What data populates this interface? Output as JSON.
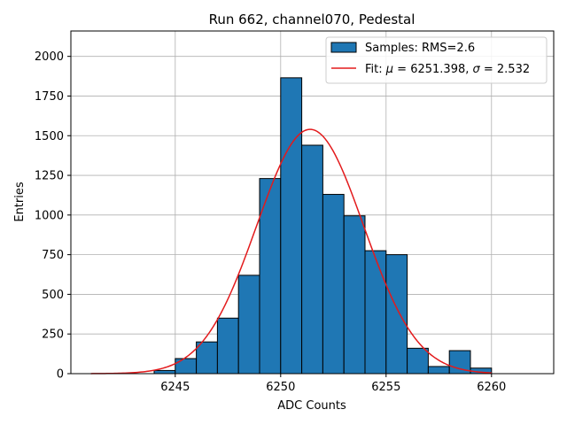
{
  "chart_data": {
    "type": "bar",
    "title": "Run 662, channel070, Pedestal",
    "xlabel": "ADC Counts",
    "ylabel": "Entries",
    "xlim": [
      6240.05,
      6262.95
    ],
    "ylim": [
      0,
      2160
    ],
    "grid": true,
    "x_ticks": [
      6245,
      6250,
      6255,
      6260
    ],
    "y_ticks": [
      0,
      250,
      500,
      750,
      1000,
      1250,
      1500,
      1750,
      2000
    ],
    "histogram": {
      "name": "Samples: RMS=2.6",
      "color": "#1f77b4",
      "bin_width": 1,
      "bin_lefts": [
        6244,
        6245,
        6246,
        6247,
        6248,
        6249,
        6250,
        6251,
        6252,
        6253,
        6254,
        6255,
        6256,
        6257,
        6258,
        6259
      ],
      "values": [
        20,
        95,
        200,
        350,
        620,
        1230,
        1865,
        1440,
        1130,
        995,
        775,
        750,
        160,
        45,
        145,
        35
      ]
    },
    "fit": {
      "name": "Fit: μ = 6251.398, σ = 2.532",
      "label_prefix": "Fit: ",
      "mu_symbol": "μ",
      "mu_text": " = 6251.398, ",
      "sigma_symbol": "σ",
      "sigma_text": " = 2.532",
      "color": "#e31a1c",
      "mu": 6251.398,
      "sigma": 2.532,
      "amplitude": 1540,
      "x_range": [
        6241,
        6260
      ]
    },
    "legend_position": "top-right"
  }
}
